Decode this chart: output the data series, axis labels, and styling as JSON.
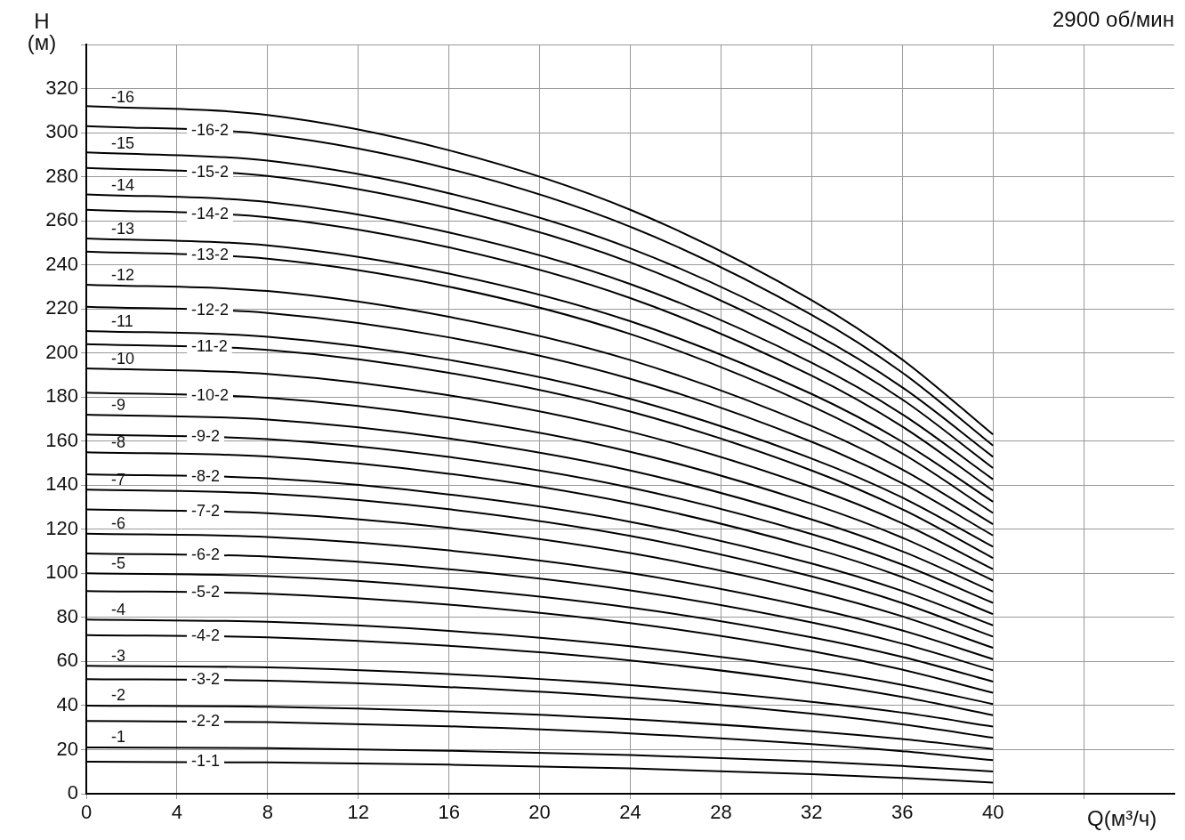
{
  "chart_data": {
    "type": "line",
    "title": "2900 об/мин",
    "xlabel": "Q(м³/ч)",
    "ylabel": "H (м)",
    "x": [
      0,
      8,
      16,
      24,
      32,
      36,
      40
    ],
    "xlim": [
      0,
      48
    ],
    "xticks": [
      0,
      4,
      8,
      12,
      16,
      20,
      24,
      28,
      32,
      36,
      40,
      {
        "value": 44,
        "label": null
      }
    ],
    "ylim": [
      0,
      340
    ],
    "yticks": [
      0,
      20,
      40,
      60,
      80,
      100,
      120,
      140,
      160,
      180,
      200,
      220,
      240,
      260,
      280,
      300,
      320,
      {
        "value": 340,
        "label": null
      }
    ],
    "grid": true,
    "legend": false,
    "marker": "none",
    "line_style": "solid",
    "series": [
      {
        "name": "-16",
        "color": "#000000",
        "values": [
          312,
          308,
          292,
          265,
          224,
          197,
          163
        ]
      },
      {
        "name": "-16-2",
        "color": "#000000",
        "values": [
          303,
          299.1,
          283.6,
          257.3,
          217.3,
          191.1,
          158
        ]
      },
      {
        "name": "-15",
        "color": "#000000",
        "values": [
          291,
          287.3,
          272.5,
          247.5,
          209.4,
          184.4,
          152.9
        ]
      },
      {
        "name": "-15-2",
        "color": "#000000",
        "values": [
          284,
          280.3,
          265.7,
          241.1,
          203.5,
          178.9,
          147.8
        ]
      },
      {
        "name": "-14",
        "color": "#000000",
        "values": [
          272,
          268.5,
          254.7,
          231.3,
          195.6,
          172.2,
          142.7
        ]
      },
      {
        "name": "-14-2",
        "color": "#000000",
        "values": [
          265,
          261.6,
          247.9,
          224.9,
          189.7,
          166.6,
          137.6
        ]
      },
      {
        "name": "-13",
        "color": "#000000",
        "values": [
          252,
          248.8,
          236,
          214.4,
          181.4,
          159.7,
          132.5
        ]
      },
      {
        "name": "-13-2",
        "color": "#000000",
        "values": [
          246,
          242.8,
          230.1,
          208.6,
          175.9,
          154.4,
          127.4
        ]
      },
      {
        "name": "-12",
        "color": "#000000",
        "values": [
          231,
          228.1,
          216.4,
          196.8,
          166.8,
          147.1,
          122.3
        ]
      },
      {
        "name": "-12-2",
        "color": "#000000",
        "values": [
          221,
          218.2,
          207.1,
          188.3,
          159.7,
          140.9,
          117.2
        ]
      },
      {
        "name": "-11",
        "color": "#000000",
        "values": [
          210,
          207.4,
          196.9,
          179.2,
          152.1,
          134.4,
          112.1
        ]
      },
      {
        "name": "-11-2",
        "color": "#000000",
        "values": [
          204,
          201.4,
          191,
          173.4,
          146.7,
          129.1,
          107
        ]
      },
      {
        "name": "-10",
        "color": "#000000",
        "values": [
          193,
          190.5,
          180.8,
          164.3,
          139.2,
          122.7,
          101.9
        ]
      },
      {
        "name": "-10-2",
        "color": "#000000",
        "values": [
          182,
          179.7,
          170.6,
          155.2,
          131.6,
          116.2,
          96.8
        ]
      },
      {
        "name": "-9",
        "color": "#000000",
        "values": [
          172,
          169.8,
          161.2,
          146.7,
          124.5,
          110,
          91.7
        ]
      },
      {
        "name": "-9-2",
        "color": "#000000",
        "values": [
          163,
          160.9,
          152.8,
          138.9,
          117.8,
          104,
          86.6
        ]
      },
      {
        "name": "-8",
        "color": "#000000",
        "values": [
          155,
          153,
          145.2,
          131.8,
          111.6,
          98.3,
          81.5
        ]
      },
      {
        "name": "-8-2",
        "color": "#000000",
        "values": [
          145,
          143.1,
          135.8,
          123.4,
          104.5,
          92,
          76.4
        ]
      },
      {
        "name": "-7",
        "color": "#000000",
        "values": [
          138,
          136.2,
          129.1,
          117,
          98.6,
          86.5,
          71.3
        ]
      },
      {
        "name": "-7-2",
        "color": "#000000",
        "values": [
          129,
          127.3,
          120.6,
          109.2,
          91.9,
          80.5,
          66.2
        ]
      },
      {
        "name": "-6",
        "color": "#000000",
        "values": [
          118,
          116.5,
          110.4,
          100.1,
          84.4,
          74.1,
          61.1
        ]
      },
      {
        "name": "-6-2",
        "color": "#000000",
        "values": [
          109,
          107.6,
          101.9,
          92.3,
          77.7,
          68.1,
          56
        ]
      },
      {
        "name": "-5",
        "color": "#000000",
        "values": [
          100,
          98.7,
          93.4,
          84.5,
          71,
          62.1,
          50.9
        ]
      },
      {
        "name": "-5-2",
        "color": "#000000",
        "values": [
          92,
          90.8,
          85.8,
          77.4,
          64.7,
          56.3,
          45.8
        ]
      },
      {
        "name": "-4",
        "color": "#000000",
        "values": [
          79,
          78,
          73.9,
          66.9,
          56.4,
          49.4,
          40.7
        ]
      },
      {
        "name": "-4-2",
        "color": "#000000",
        "values": [
          72,
          71,
          67.1,
          60.5,
          50.5,
          43.9,
          35.6
        ]
      },
      {
        "name": "-3",
        "color": "#000000",
        "values": [
          58,
          57.3,
          54.3,
          49.3,
          41.7,
          36.8,
          30.5
        ]
      },
      {
        "name": "-3-2",
        "color": "#000000",
        "values": [
          52,
          51.3,
          48.4,
          43.6,
          36.3,
          31.5,
          25.4
        ]
      },
      {
        "name": "-2",
        "color": "#000000",
        "values": [
          40,
          39.5,
          37.4,
          33.8,
          28.4,
          24.8,
          20.3
        ]
      },
      {
        "name": "-2-2",
        "color": "#000000",
        "values": [
          33,
          32.5,
          30.6,
          27.4,
          22.5,
          19.3,
          15.2
        ]
      },
      {
        "name": "-1",
        "color": "#000000",
        "values": [
          21,
          20.7,
          19.5,
          17.6,
          14.6,
          12.6,
          10.1
        ]
      },
      {
        "name": "-1-1",
        "color": "#000000",
        "values": [
          14.5,
          14.2,
          13.2,
          11.5,
          8.9,
          7.2,
          5
        ]
      }
    ]
  }
}
